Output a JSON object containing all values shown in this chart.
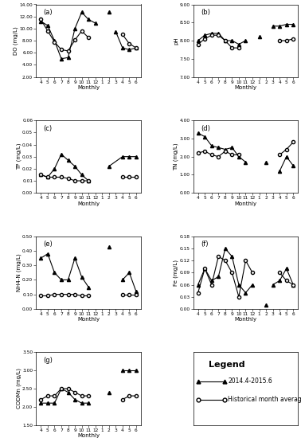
{
  "x_labels": [
    "4",
    "5",
    "6",
    "7",
    "8",
    "9",
    "10",
    "11",
    "12",
    "1",
    "2",
    "3",
    "4",
    "5",
    "6"
  ],
  "xlabel": "Monthly",
  "panels": [
    {
      "label": "(a)",
      "ylabel": "DO (mg/L)",
      "ylim": [
        2.0,
        14.0
      ],
      "yticks": [
        2.0,
        4.0,
        6.0,
        8.0,
        10.0,
        12.0,
        14.0
      ],
      "ytick_labels": [
        "2.00",
        "4.00",
        "6.00",
        "8.00",
        "10.00",
        "12.00",
        "14.00"
      ],
      "s1_segs": [
        {
          "x": [
            4,
            5,
            6,
            7,
            8,
            9,
            10,
            11,
            12
          ],
          "y": [
            11.2,
            10.5,
            8.0,
            5.0,
            5.2,
            10.0,
            12.7,
            11.5,
            10.9
          ]
        },
        {
          "x": [
            3,
            4,
            5,
            6
          ],
          "y": [
            9.5,
            6.8,
            6.5,
            6.8
          ]
        }
      ],
      "s1_iso": {
        "x": [
          2
        ],
        "y": [
          12.7
        ]
      },
      "s2_segs": [
        {
          "x": [
            4,
            5,
            6,
            7,
            8,
            9,
            10,
            11
          ],
          "y": [
            11.5,
            9.6,
            7.8,
            6.5,
            6.3,
            8.1,
            9.6,
            8.5
          ]
        },
        {
          "x": [
            4,
            5,
            6
          ],
          "y": [
            9.0,
            7.5,
            6.8
          ]
        }
      ]
    },
    {
      "label": "(b)",
      "ylabel": "pH",
      "ylim": [
        7.0,
        9.0
      ],
      "yticks": [
        7.0,
        7.5,
        8.0,
        8.5,
        9.0
      ],
      "ytick_labels": [
        "7.00",
        "7.50",
        "8.00",
        "8.50",
        "9.00"
      ],
      "s1_segs": [
        {
          "x": [
            4,
            5,
            6,
            7,
            8,
            9,
            10,
            11
          ],
          "y": [
            8.0,
            8.15,
            8.2,
            8.2,
            8.0,
            8.0,
            7.9,
            8.0
          ]
        },
        {
          "x": [
            3,
            4,
            5,
            6
          ],
          "y": [
            8.4,
            8.4,
            8.45,
            8.45
          ]
        }
      ],
      "s1_iso": {
        "x": [
          1
        ],
        "y": [
          8.1
        ]
      },
      "s2_segs": [
        {
          "x": [
            4,
            5,
            6,
            7,
            8,
            9,
            10
          ],
          "y": [
            7.9,
            8.05,
            8.15,
            8.15,
            8.0,
            7.8,
            7.8
          ]
        },
        {
          "x": [
            4,
            5,
            6
          ],
          "y": [
            8.0,
            8.0,
            8.05
          ]
        }
      ]
    },
    {
      "label": "(c)",
      "ylabel": "TP (mg/L)",
      "ylim": [
        0.0,
        0.06
      ],
      "yticks": [
        0.0,
        0.01,
        0.02,
        0.03,
        0.04,
        0.05,
        0.06
      ],
      "ytick_labels": [
        "0.00",
        "0.01",
        "0.02",
        "0.03",
        "0.04",
        "0.05",
        "0.06"
      ],
      "s1_segs": [
        {
          "x": [
            4,
            5,
            6,
            7,
            8,
            9,
            10,
            11
          ],
          "y": [
            0.015,
            0.013,
            0.02,
            0.032,
            0.027,
            0.022,
            0.015,
            0.01
          ]
        },
        {
          "x": [
            2,
            4,
            5,
            6
          ],
          "y": [
            0.022,
            0.03,
            0.03,
            0.03
          ]
        }
      ],
      "s1_iso": null,
      "s2_segs": [
        {
          "x": [
            4,
            5,
            6,
            7,
            8,
            9,
            10,
            11
          ],
          "y": [
            0.015,
            0.013,
            0.013,
            0.013,
            0.012,
            0.01,
            0.01,
            0.01
          ]
        },
        {
          "x": [
            4,
            5,
            6
          ],
          "y": [
            0.013,
            0.013,
            0.013
          ]
        }
      ]
    },
    {
      "label": "(d)",
      "ylabel": "TN (mg/L)",
      "ylim": [
        0.0,
        4.0
      ],
      "yticks": [
        0.0,
        1.0,
        2.0,
        3.0,
        4.0
      ],
      "ytick_labels": [
        "0.00",
        "1.00",
        "2.00",
        "3.00",
        "4.00"
      ],
      "s1_segs": [
        {
          "x": [
            4,
            5,
            6,
            7,
            8,
            9,
            10,
            11
          ],
          "y": [
            3.3,
            3.1,
            2.6,
            2.5,
            2.4,
            2.5,
            2.0,
            1.7
          ]
        },
        {
          "x": [
            4,
            5,
            6
          ],
          "y": [
            1.2,
            2.0,
            1.5
          ]
        }
      ],
      "s1_iso": {
        "x": [
          2
        ],
        "y": [
          1.7
        ]
      },
      "s2_segs": [
        {
          "x": [
            4,
            5,
            6,
            7,
            8,
            9,
            10
          ],
          "y": [
            2.2,
            2.3,
            2.1,
            2.0,
            2.3,
            2.1,
            2.1
          ]
        },
        {
          "x": [
            4,
            5,
            6
          ],
          "y": [
            2.1,
            2.4,
            2.8
          ]
        }
      ]
    },
    {
      "label": "(e)",
      "ylabel": "NH4-N (mg/L)",
      "ylim": [
        0.0,
        0.5
      ],
      "yticks": [
        0.0,
        0.1,
        0.2,
        0.3,
        0.4,
        0.5
      ],
      "ytick_labels": [
        "0.00",
        "0.10",
        "0.20",
        "0.30",
        "0.40",
        "0.50"
      ],
      "s1_segs": [
        {
          "x": [
            4,
            5,
            6,
            7,
            8,
            9,
            10,
            11
          ],
          "y": [
            0.35,
            0.38,
            0.25,
            0.2,
            0.2,
            0.35,
            0.22,
            0.15
          ]
        },
        {
          "x": [
            4,
            5,
            6
          ],
          "y": [
            0.2,
            0.25,
            0.12
          ]
        }
      ],
      "s1_iso": {
        "x": [
          2
        ],
        "y": [
          0.43
        ]
      },
      "s2_segs": [
        {
          "x": [
            4,
            5,
            6,
            7,
            8,
            9,
            10,
            11
          ],
          "y": [
            0.09,
            0.09,
            0.1,
            0.1,
            0.1,
            0.1,
            0.09,
            0.09
          ]
        },
        {
          "x": [
            4,
            5,
            6
          ],
          "y": [
            0.1,
            0.1,
            0.1
          ]
        }
      ]
    },
    {
      "label": "(f)",
      "ylabel": "Fe (mg/L)",
      "ylim": [
        0.0,
        0.18
      ],
      "yticks": [
        0.0,
        0.03,
        0.06,
        0.09,
        0.12,
        0.15,
        0.18
      ],
      "ytick_labels": [
        "0.00",
        "0.03",
        "0.06",
        "0.09",
        "0.12",
        "0.15",
        "0.18"
      ],
      "s1_segs": [
        {
          "x": [
            4,
            5,
            6,
            7,
            8,
            9,
            10,
            11,
            12
          ],
          "y": [
            0.06,
            0.1,
            0.07,
            0.08,
            0.15,
            0.13,
            0.06,
            0.04,
            0.06
          ]
        },
        {
          "x": [
            3,
            4,
            5,
            6
          ],
          "y": [
            0.06,
            0.07,
            0.1,
            0.06
          ]
        }
      ],
      "s1_iso": {
        "x": [
          2
        ],
        "y": [
          0.01
        ]
      },
      "s2_segs": [
        {
          "x": [
            4,
            5,
            6,
            7,
            8,
            9,
            10,
            11,
            12
          ],
          "y": [
            0.04,
            0.1,
            0.06,
            0.13,
            0.12,
            0.09,
            0.03,
            0.12,
            0.09
          ]
        },
        {
          "x": [
            4,
            5,
            6
          ],
          "y": [
            0.09,
            0.07,
            0.06
          ]
        }
      ]
    },
    {
      "label": "(g)",
      "ylabel": "CODMn (mg/L)",
      "ylim": [
        1.5,
        3.5
      ],
      "yticks": [
        1.5,
        2.0,
        2.5,
        3.0,
        3.5
      ],
      "ytick_labels": [
        "1.50",
        "2.00",
        "2.50",
        "3.00",
        "3.50"
      ],
      "s1_segs": [
        {
          "x": [
            4,
            5,
            6,
            7,
            8,
            9,
            10,
            11
          ],
          "y": [
            2.1,
            2.1,
            2.1,
            2.5,
            2.4,
            2.2,
            2.1,
            2.1
          ]
        },
        {
          "x": [
            4,
            5,
            6
          ],
          "y": [
            3.0,
            3.0,
            3.0
          ]
        }
      ],
      "s1_iso": {
        "x": [
          2
        ],
        "y": [
          2.4
        ]
      },
      "s2_segs": [
        {
          "x": [
            4,
            5,
            6,
            7,
            8,
            9,
            10,
            11
          ],
          "y": [
            2.2,
            2.3,
            2.3,
            2.5,
            2.5,
            2.4,
            2.3,
            2.3
          ]
        },
        {
          "x": [
            4,
            5,
            6
          ],
          "y": [
            2.2,
            2.3,
            2.3
          ]
        }
      ]
    }
  ],
  "legend_s1_label": "2014.4-2015.6",
  "legend_s2_label": "Historical month average value"
}
